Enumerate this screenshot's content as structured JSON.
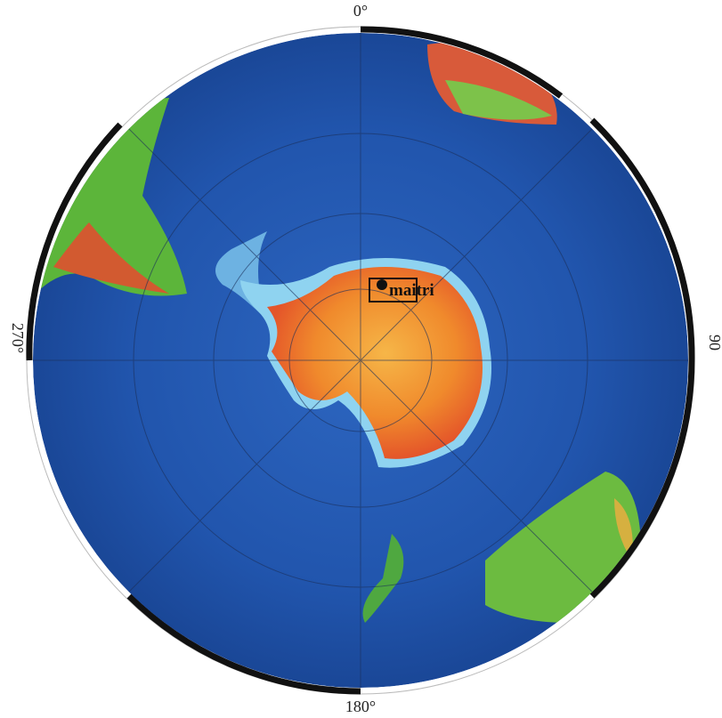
{
  "map": {
    "labels": {
      "top": "0°",
      "right": "90",
      "bottom": "180°",
      "left": "270°"
    },
    "station": {
      "name": "maitri"
    }
  }
}
